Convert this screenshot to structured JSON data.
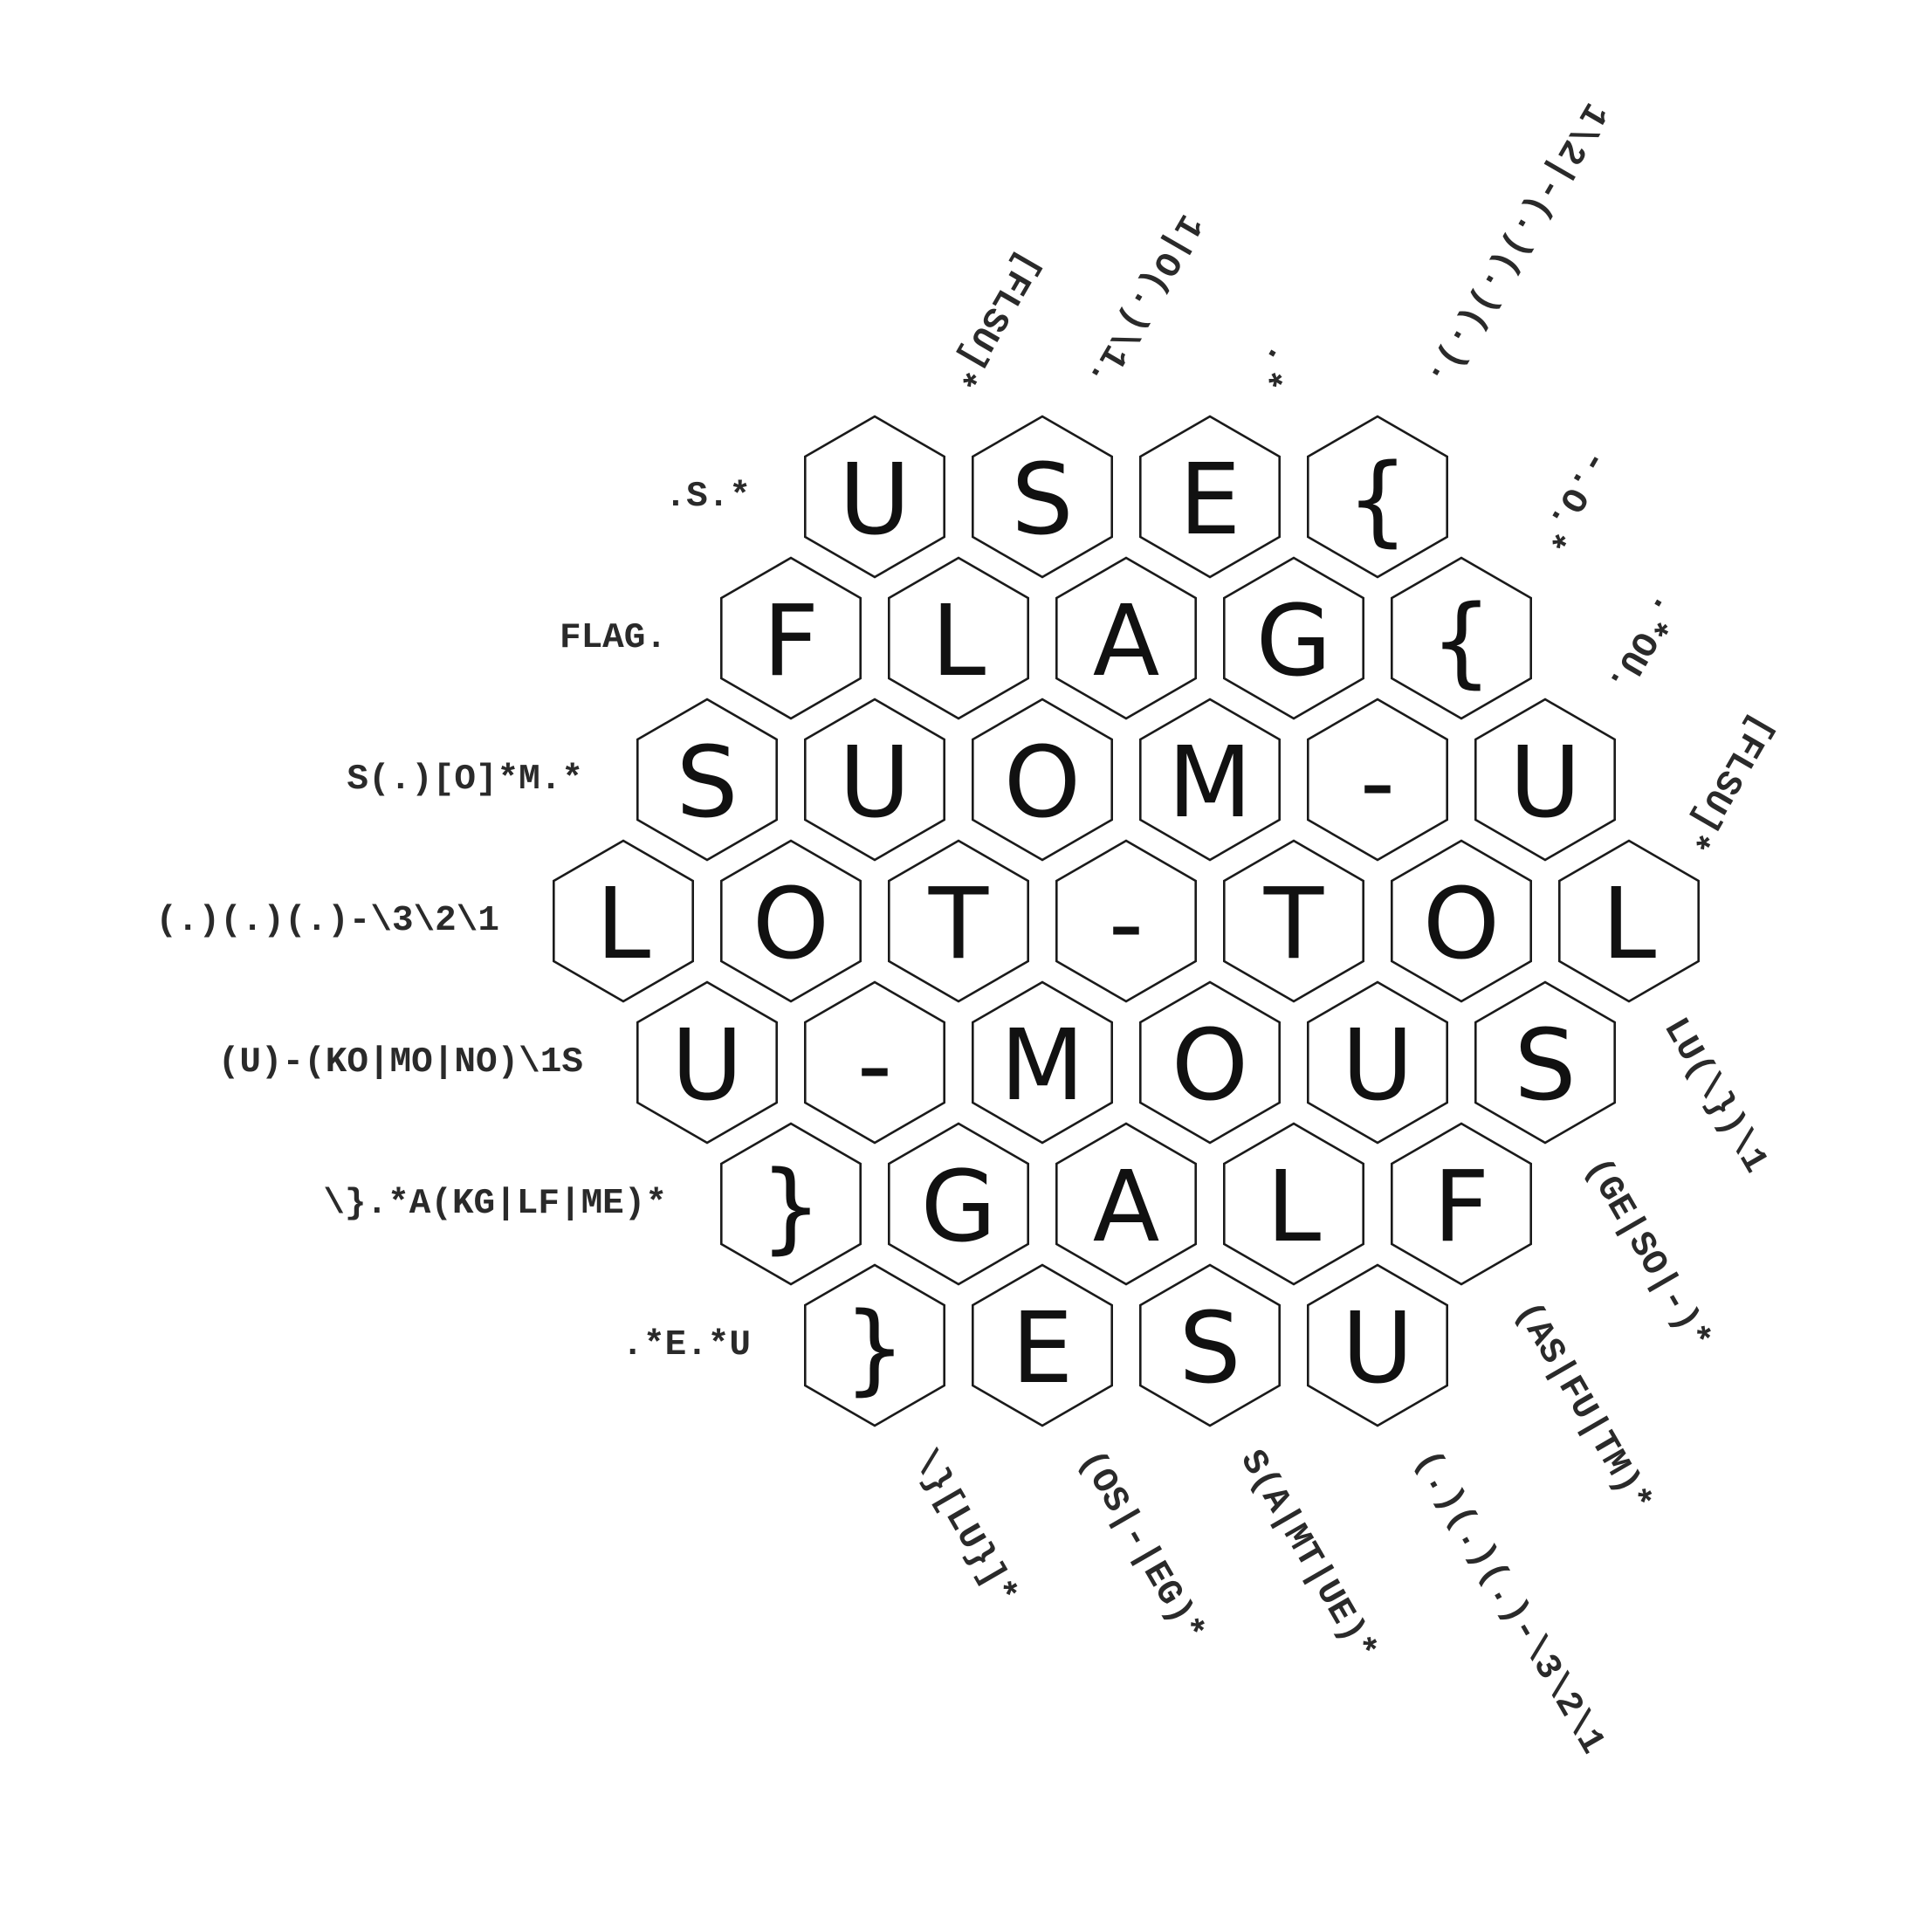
{
  "grid": {
    "rows": [
      [
        "U",
        "S",
        "E",
        "{"
      ],
      [
        "F",
        "L",
        "A",
        "G",
        "{"
      ],
      [
        "S",
        "U",
        "O",
        "M",
        "-",
        "U"
      ],
      [
        "L",
        "O",
        "T",
        "-",
        "T",
        "O",
        "L"
      ],
      [
        "U",
        "-",
        "M",
        "O",
        "U",
        "S"
      ],
      [
        "}",
        "G",
        "A",
        "L",
        "F"
      ],
      [
        "}",
        "E",
        "S",
        "U"
      ]
    ]
  },
  "clues": {
    "left": [
      ".S.*",
      "FLAG.",
      "S(.)[O]*M.*",
      "(.)(.)(.)-\\3\\2\\1",
      "(U)-(KO|MO|NO)\\1S",
      "\\}.*A(KG|LF|ME)*",
      ".*E.*U"
    ],
    "top": [
      "[FLSU]*",
      "1|O(.)\\1.",
      ".*",
      "1\\2|-(.)(.)(.).",
      "-.O.*",
      ".*OU.",
      "[FLSU]*"
    ],
    "bottom": [
      "\\}[LU}]*",
      "(OS|-|EG)*",
      "S(A|MT|UE)*",
      "(.)(.)(.)-\\3\\2\\1",
      "(AS|FU|TM)*",
      "(GE|SO|-)*",
      "LU(\\})\\1"
    ]
  }
}
